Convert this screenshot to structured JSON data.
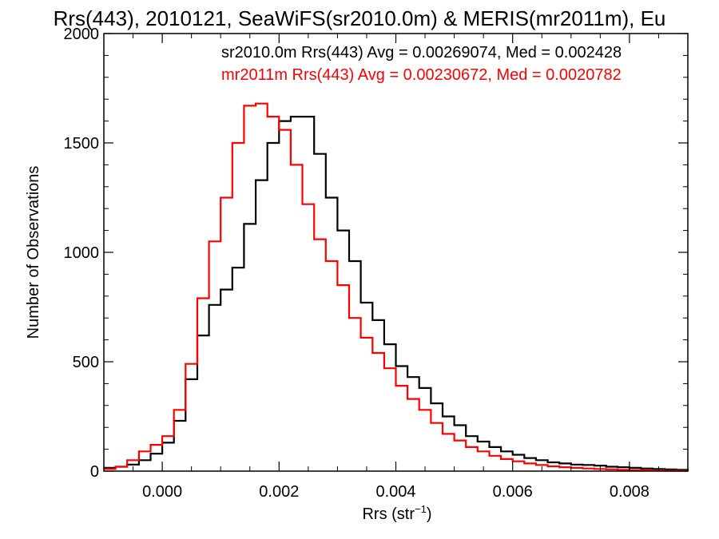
{
  "chart_data": {
    "type": "line",
    "title": "Rrs(443), 2010121, SeaWiFS(sr2010.0m) & MERIS(mr2011m), Eu",
    "xlabel_main": "Rrs (str",
    "xlabel_sup": "−1",
    "xlabel_close": ")",
    "ylabel": "Number of Observations",
    "xlim": [
      -0.001,
      0.009
    ],
    "ylim": [
      0,
      2000
    ],
    "x_ticks": [
      0.0,
      0.002,
      0.004,
      0.006,
      0.008
    ],
    "x_tick_labels": [
      "0.000",
      "0.002",
      "0.004",
      "0.006",
      "0.008"
    ],
    "y_ticks": [
      0,
      500,
      1000,
      1500,
      2000
    ],
    "y_tick_labels": [
      "0",
      "500",
      "1000",
      "1500",
      "2000"
    ],
    "grid": false,
    "legend": [
      {
        "text": "sr2010.0m Rrs(443) Avg = 0.00269074, Med = 0.002428",
        "color": "#000000"
      },
      {
        "text": "mr2011m Rrs(443) Avg = 0.00230672, Med = 0.0020782",
        "color": "#ff0000"
      }
    ],
    "series": [
      {
        "color": "#000000",
        "x": [
          -0.001,
          -0.0008,
          -0.0006,
          -0.0004,
          -0.0002,
          0.0,
          0.0002,
          0.0004,
          0.0006,
          0.0008,
          0.001,
          0.0012,
          0.0014,
          0.0016,
          0.0018,
          0.002,
          0.0022,
          0.0024,
          0.0026,
          0.0028,
          0.003,
          0.0032,
          0.0034,
          0.0036,
          0.0038,
          0.004,
          0.0042,
          0.0044,
          0.0046,
          0.0048,
          0.005,
          0.0052,
          0.0054,
          0.0056,
          0.0058,
          0.006,
          0.0062,
          0.0064,
          0.0066,
          0.0068,
          0.007,
          0.0072,
          0.0074,
          0.0076,
          0.0078,
          0.008,
          0.0082,
          0.0084,
          0.0086,
          0.0088,
          0.009
        ],
        "y": [
          15,
          20,
          30,
          50,
          80,
          130,
          230,
          420,
          620,
          760,
          830,
          930,
          1130,
          1330,
          1500,
          1600,
          1620,
          1620,
          1450,
          1250,
          1100,
          960,
          770,
          690,
          580,
          480,
          430,
          380,
          310,
          250,
          210,
          160,
          135,
          110,
          90,
          75,
          60,
          50,
          40,
          35,
          30,
          28,
          25,
          20,
          18,
          15,
          12,
          10,
          8,
          6,
          5
        ]
      },
      {
        "color": "#ff0000",
        "x": [
          -0.001,
          -0.0008,
          -0.0006,
          -0.0004,
          -0.0002,
          0.0,
          0.0002,
          0.0004,
          0.0006,
          0.0008,
          0.001,
          0.0012,
          0.0014,
          0.0016,
          0.0018,
          0.002,
          0.0022,
          0.0024,
          0.0026,
          0.0028,
          0.003,
          0.0032,
          0.0034,
          0.0036,
          0.0038,
          0.004,
          0.0042,
          0.0044,
          0.0046,
          0.0048,
          0.005,
          0.0052,
          0.0054,
          0.0056,
          0.0058,
          0.006,
          0.0062,
          0.0064,
          0.0066,
          0.0068,
          0.007,
          0.0072,
          0.0074,
          0.0076,
          0.0078,
          0.008,
          0.0082,
          0.0084,
          0.0086,
          0.0088,
          0.009
        ],
        "y": [
          10,
          20,
          50,
          90,
          120,
          160,
          280,
          490,
          790,
          1050,
          1250,
          1500,
          1670,
          1680,
          1620,
          1560,
          1400,
          1220,
          1060,
          960,
          850,
          700,
          610,
          540,
          470,
          390,
          330,
          280,
          220,
          170,
          140,
          110,
          90,
          70,
          55,
          45,
          35,
          28,
          22,
          18,
          15,
          12,
          10,
          8,
          6,
          5,
          4,
          3,
          2,
          2,
          1
        ]
      }
    ]
  }
}
